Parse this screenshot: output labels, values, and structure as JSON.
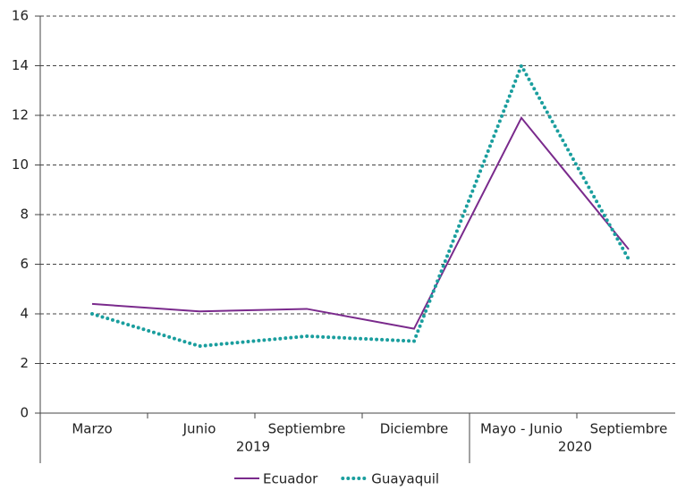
{
  "chart_data": {
    "type": "line",
    "categories": [
      "Marzo",
      "Junio",
      "Septiembre",
      "Diciembre",
      "Mayo - Junio",
      "Septiembre"
    ],
    "x_groups": [
      {
        "label": "2019",
        "start": 0,
        "end": 3
      },
      {
        "label": "2020",
        "start": 4,
        "end": 5
      }
    ],
    "series": [
      {
        "name": "Ecuador",
        "color": "#7a2a8c",
        "style": "solid",
        "values": [
          4.4,
          4.1,
          4.2,
          3.4,
          11.9,
          6.6
        ]
      },
      {
        "name": "Guayaquil",
        "color": "#1a9e9e",
        "style": "dotted",
        "values": [
          4.0,
          2.7,
          3.1,
          2.9,
          14.0,
          6.2
        ]
      }
    ],
    "ylim": [
      0,
      16
    ],
    "yticks": [
      0,
      2,
      4,
      6,
      8,
      10,
      12,
      14,
      16
    ],
    "grid": true,
    "legend": "bottom"
  }
}
